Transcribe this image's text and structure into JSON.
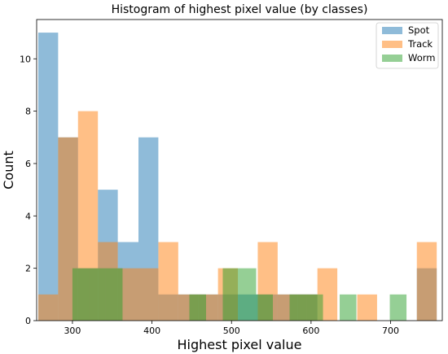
{
  "chart_data": {
    "type": "bar",
    "title": "Histogram of highest pixel value (by classes)",
    "xlabel": "Highest pixel value",
    "ylabel": "Count",
    "xlim": [
      255,
      765
    ],
    "ylim": [
      0,
      11.5
    ],
    "xticks": [
      300,
      400,
      500,
      600,
      700
    ],
    "yticks": [
      0,
      2,
      4,
      6,
      8,
      10
    ],
    "grid": false,
    "legend_position": "top-right",
    "series": [
      {
        "name": "Spot",
        "color": "#1f77b4",
        "opacity": 0.5,
        "bins": [
          {
            "x0": 257,
            "x1": 282,
            "count": 11
          },
          {
            "x0": 282,
            "x1": 307,
            "count": 7
          },
          {
            "x0": 307,
            "x1": 332,
            "count": 2
          },
          {
            "x0": 332,
            "x1": 357,
            "count": 5
          },
          {
            "x0": 357,
            "x1": 383,
            "count": 3
          },
          {
            "x0": 383,
            "x1": 408,
            "count": 7
          },
          {
            "x0": 408,
            "x1": 433,
            "count": 1
          },
          {
            "x0": 433,
            "x1": 458,
            "count": 1
          },
          {
            "x0": 458,
            "x1": 483,
            "count": 1
          },
          {
            "x0": 483,
            "x1": 508,
            "count": 1
          },
          {
            "x0": 508,
            "x1": 533,
            "count": 1
          },
          {
            "x0": 533,
            "x1": 558,
            "count": 1
          },
          {
            "x0": 558,
            "x1": 583,
            "count": 1
          },
          {
            "x0": 583,
            "x1": 608,
            "count": 1
          },
          {
            "x0": 733,
            "x1": 758,
            "count": 2
          }
        ]
      },
      {
        "name": "Track",
        "color": "#ff7f0e",
        "opacity": 0.5,
        "bins": [
          {
            "x0": 257,
            "x1": 282,
            "count": 1
          },
          {
            "x0": 282,
            "x1": 307,
            "count": 7
          },
          {
            "x0": 307,
            "x1": 332,
            "count": 8
          },
          {
            "x0": 332,
            "x1": 357,
            "count": 3
          },
          {
            "x0": 357,
            "x1": 383,
            "count": 2
          },
          {
            "x0": 383,
            "x1": 408,
            "count": 2
          },
          {
            "x0": 408,
            "x1": 433,
            "count": 3
          },
          {
            "x0": 433,
            "x1": 458,
            "count": 1
          },
          {
            "x0": 458,
            "x1": 483,
            "count": 1
          },
          {
            "x0": 483,
            "x1": 508,
            "count": 2
          },
          {
            "x0": 533,
            "x1": 558,
            "count": 3
          },
          {
            "x0": 558,
            "x1": 583,
            "count": 1
          },
          {
            "x0": 583,
            "x1": 608,
            "count": 1
          },
          {
            "x0": 608,
            "x1": 633,
            "count": 2
          },
          {
            "x0": 658,
            "x1": 683,
            "count": 1
          },
          {
            "x0": 733,
            "x1": 758,
            "count": 3
          }
        ]
      },
      {
        "name": "Worm",
        "color": "#2ca02c",
        "opacity": 0.5,
        "bins": [
          {
            "x0": 300,
            "x1": 321,
            "count": 2
          },
          {
            "x0": 321,
            "x1": 342,
            "count": 2
          },
          {
            "x0": 342,
            "x1": 363,
            "count": 2
          },
          {
            "x0": 447,
            "x1": 468,
            "count": 1
          },
          {
            "x0": 489,
            "x1": 510,
            "count": 2
          },
          {
            "x0": 510,
            "x1": 531,
            "count": 2
          },
          {
            "x0": 531,
            "x1": 552,
            "count": 1
          },
          {
            "x0": 573,
            "x1": 594,
            "count": 1
          },
          {
            "x0": 594,
            "x1": 615,
            "count": 1
          },
          {
            "x0": 636,
            "x1": 657,
            "count": 1
          },
          {
            "x0": 699,
            "x1": 720,
            "count": 1
          }
        ]
      }
    ]
  }
}
